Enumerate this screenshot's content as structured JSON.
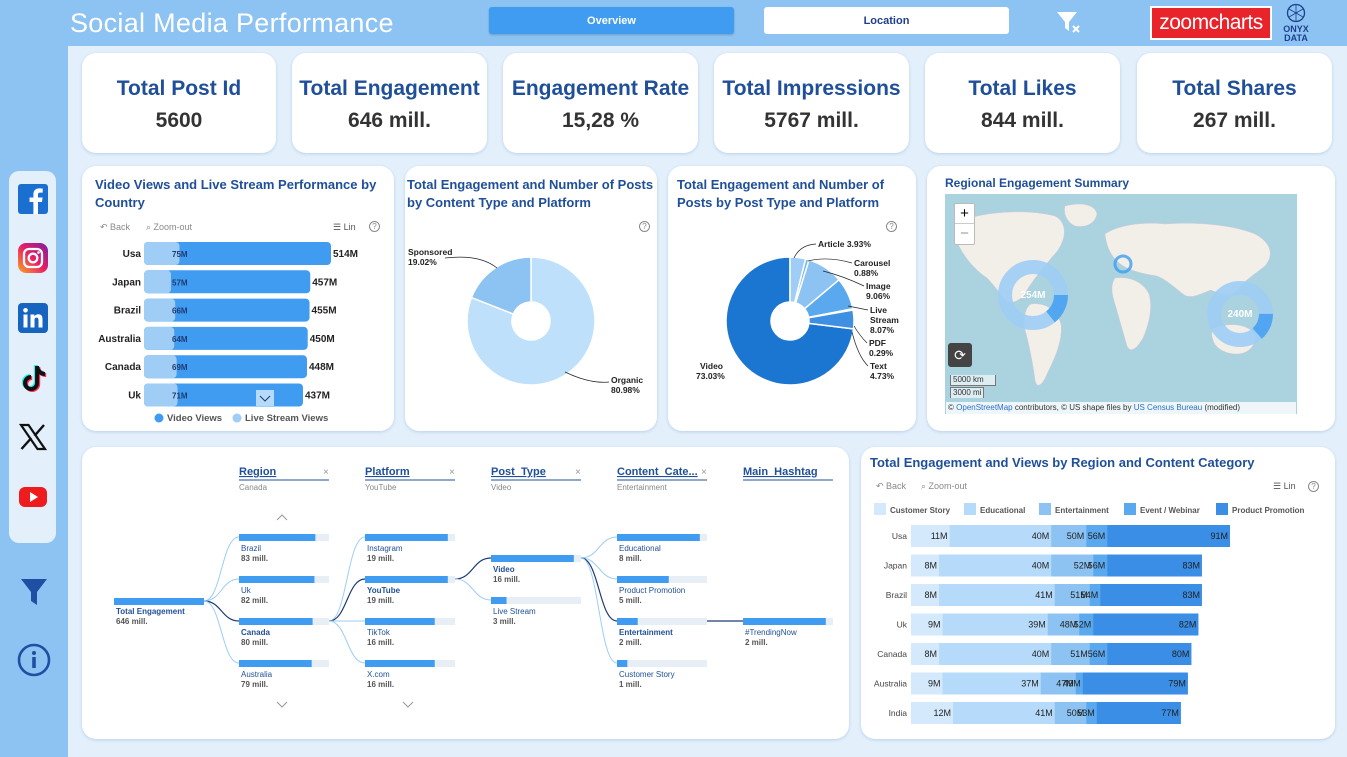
{
  "header": {
    "title": "Social  Media Performance",
    "nav": {
      "overview": "Overview",
      "location": "Location"
    },
    "zoomcharts_logo": "zoomcharts",
    "onyx_logo_line1": "ONYX",
    "onyx_logo_line2": "DATA"
  },
  "sidebar_icons": [
    "facebook-icon",
    "instagram-icon",
    "linkedin-icon",
    "tiktok-icon",
    "x-icon",
    "youtube-icon"
  ],
  "kpis": [
    {
      "label": "Total Post Id",
      "value": "5600"
    },
    {
      "label": "Total Engagement",
      "value": "646 mill."
    },
    {
      "label": "Engagement Rate",
      "value": "15,28 %"
    },
    {
      "label": "Total Impressions",
      "value": "5767 mill."
    },
    {
      "label": "Total Likes",
      "value": "844 mill."
    },
    {
      "label": "Total Shares",
      "value": "267 mill."
    }
  ],
  "toolbar": {
    "back": "Back",
    "zoom_out": "Zoom-out",
    "lin": "Lin",
    "help": "?"
  },
  "country_chart": {
    "title": "Video Views and Live Stream Performance by Country",
    "legend": [
      "Video Views",
      "Live Stream Views"
    ],
    "rows": [
      {
        "country": "Usa",
        "live": "75M",
        "total": "514M",
        "total_v": 514,
        "live_v": 75
      },
      {
        "country": "Japan",
        "live": "57M",
        "total": "457M",
        "total_v": 457,
        "live_v": 57
      },
      {
        "country": "Brazil",
        "live": "66M",
        "total": "455M",
        "total_v": 455,
        "live_v": 66
      },
      {
        "country": "Australia",
        "live": "64M",
        "total": "450M",
        "total_v": 450,
        "live_v": 64
      },
      {
        "country": "Canada",
        "live": "69M",
        "total": "448M",
        "total_v": 448,
        "live_v": 69
      },
      {
        "country": "Uk",
        "live": "71M",
        "total": "437M",
        "total_v": 437,
        "live_v": 71
      }
    ],
    "colors": {
      "video": "#3f9cf0",
      "live": "#9fcdf5"
    }
  },
  "content_type_chart": {
    "title": "Total Engagement and Number of Posts by Content Type and Platform",
    "slices": [
      {
        "name": "Organic",
        "pct": "80.98%",
        "value": 80.98,
        "color": "#bfe0fa"
      },
      {
        "name": "Sponsored",
        "pct": "19.02%",
        "value": 19.02,
        "color": "#8cc3f2"
      }
    ]
  },
  "post_type_chart": {
    "title": "Total Engagement and Number of Posts by Post Type and Platform",
    "slices": [
      {
        "name": "Video",
        "pct": "73.03%",
        "value": 73.03,
        "color": "#1b76d2"
      },
      {
        "name": "Article",
        "pct": "3.93%",
        "value": 3.93,
        "color": "#9fcdf5"
      },
      {
        "name": "Carousel",
        "pct": "0.88%",
        "value": 0.88,
        "color": "#7ab8f1"
      },
      {
        "name": "Image",
        "pct": "9.06%",
        "value": 9.06,
        "color": "#8cc3f2"
      },
      {
        "name": "Live Stream",
        "pct": "8.07%",
        "value": 8.07,
        "color": "#5aa8ee"
      },
      {
        "name": "PDF",
        "pct": "0.29%",
        "value": 0.29,
        "color": "#4a9cea"
      },
      {
        "name": "Text",
        "pct": "4.73%",
        "value": 4.73,
        "color": "#3f8fe3"
      }
    ]
  },
  "map": {
    "title": "Regional Engagement Summary",
    "zoom_in": "+",
    "zoom_out": "−",
    "scale_km": "5000 km",
    "scale_mi": "3000 mi",
    "attribution_prefix": "©",
    "attribution_osm": "OpenStreetMap",
    "attribution_mid": "contributors, © US shape files by",
    "attribution_census": "US Census Bureau",
    "attribution_suffix": "(modified)",
    "bubbles": [
      {
        "label": "254M"
      },
      {
        "label": "240M"
      }
    ]
  },
  "decomposition": {
    "columns": [
      {
        "header": "Region",
        "sub": "Canada"
      },
      {
        "header": "Platform",
        "sub": "YouTube"
      },
      {
        "header": "Post_Type",
        "sub": "Video"
      },
      {
        "header": "Content_Cate...",
        "sub": "Entertainment"
      },
      {
        "header": "Main_Hashtag",
        "sub": ""
      }
    ],
    "root": {
      "label": "Total Engagement",
      "value": "646 mill."
    },
    "region": [
      {
        "label": "Brazil",
        "value": "83 mill.",
        "v": 83
      },
      {
        "label": "Uk",
        "value": "82 mill.",
        "v": 82
      },
      {
        "label": "Canada",
        "value": "80 mill.",
        "v": 80,
        "selected": true
      },
      {
        "label": "Australia",
        "value": "79 mill.",
        "v": 79
      }
    ],
    "platform": [
      {
        "label": "Instagram",
        "value": "19 mill.",
        "v": 19
      },
      {
        "label": "YouTube",
        "value": "19 mill.",
        "v": 19,
        "selected": true
      },
      {
        "label": "TikTok",
        "value": "16 mill.",
        "v": 16
      },
      {
        "label": "X.com",
        "value": "16 mill.",
        "v": 16
      }
    ],
    "post_type": [
      {
        "label": "Video",
        "value": "16 mill.",
        "v": 16,
        "selected": true
      },
      {
        "label": "Live Stream",
        "value": "3 mill.",
        "v": 3
      }
    ],
    "content": [
      {
        "label": "Educational",
        "value": "8 mill.",
        "v": 8
      },
      {
        "label": "Product Promotion",
        "value": "5 mill.",
        "v": 5
      },
      {
        "label": "Entertainment",
        "value": "2 mill.",
        "v": 2,
        "selected": true
      },
      {
        "label": "Customer Story",
        "value": "1 mill.",
        "v": 1
      }
    ],
    "hashtag": [
      {
        "label": "#TrendingNow",
        "value": "2 mill.",
        "v": 2
      }
    ]
  },
  "region_content_chart": {
    "title": "Total Engagement and Views by Region and Content Category",
    "legend": [
      "Customer Story",
      "Educational",
      "Entertainment",
      "Event / Webinar",
      "Product Promotion"
    ],
    "colors": [
      "#d4eafc",
      "#b6dbfa",
      "#8cc3f2",
      "#5aa8ee",
      "#3a8ee5"
    ],
    "rows": [
      {
        "region": "Usa",
        "labels": [
          "11M",
          "40M",
          "50M",
          "56M",
          "91M"
        ],
        "values": [
          11,
          40,
          50,
          56,
          91
        ]
      },
      {
        "region": "Japan",
        "labels": [
          "8M",
          "40M",
          "52M",
          "56M",
          "83M"
        ],
        "values": [
          8,
          40,
          52,
          56,
          83
        ]
      },
      {
        "region": "Brazil",
        "labels": [
          "8M",
          "41M",
          "51M",
          "54M",
          "83M"
        ],
        "values": [
          8,
          41,
          51,
          54,
          83
        ]
      },
      {
        "region": "Uk",
        "labels": [
          "9M",
          "39M",
          "48M",
          "52M",
          "82M"
        ],
        "values": [
          9,
          39,
          48,
          52,
          82
        ]
      },
      {
        "region": "Canada",
        "labels": [
          "8M",
          "40M",
          "51M",
          "56M",
          "80M"
        ],
        "values": [
          8,
          40,
          51,
          56,
          80
        ]
      },
      {
        "region": "Australia",
        "labels": [
          "9M",
          "37M",
          "47M",
          "49M",
          "79M"
        ],
        "values": [
          9,
          37,
          47,
          49,
          79
        ]
      },
      {
        "region": "India",
        "labels": [
          "12M",
          "41M",
          "50M",
          "53M",
          "77M"
        ],
        "values": [
          12,
          41,
          50,
          53,
          77
        ]
      }
    ]
  }
}
